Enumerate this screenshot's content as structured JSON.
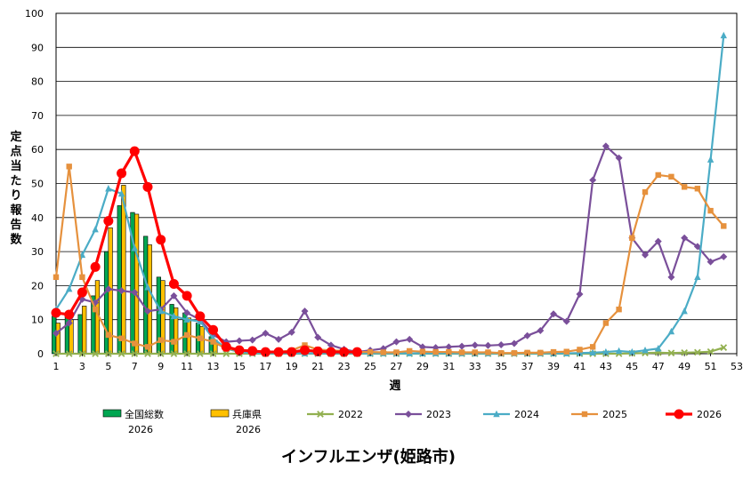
{
  "chart_data": {
    "type": "bar+line",
    "title": "インフルエンザ(姫路市)",
    "xlabel": "週",
    "ylabel": "定点当たり報告数",
    "xlim": [
      1,
      53
    ],
    "ylim": [
      0,
      100
    ],
    "yticks": [
      0,
      10,
      20,
      30,
      40,
      50,
      60,
      70,
      80,
      90,
      100
    ],
    "xticks": [
      1,
      3,
      5,
      7,
      9,
      11,
      13,
      15,
      17,
      19,
      21,
      23,
      25,
      27,
      29,
      31,
      33,
      35,
      37,
      39,
      41,
      43,
      45,
      47,
      49,
      51,
      53
    ],
    "grid": "horizontal",
    "legend_position": "bottom",
    "bar_series": [
      {
        "name": "全国総数\n2026",
        "color": "#00a651",
        "x": [
          1,
          2,
          3,
          4,
          5,
          6,
          7,
          8,
          9,
          10,
          11,
          12,
          13
        ],
        "values": [
          11,
          11,
          11.5,
          17,
          30,
          43.5,
          41.5,
          34.5,
          22.5,
          14.5,
          12,
          9,
          5
        ]
      },
      {
        "name": "兵庫県\n2026",
        "color": "#ffc000",
        "x": [
          1,
          2,
          3,
          4,
          5,
          6,
          7,
          8,
          9,
          10,
          11,
          12,
          13
        ],
        "values": [
          9,
          10,
          14,
          21.5,
          37,
          49.5,
          41,
          32,
          21.5,
          13.5,
          10.5,
          8,
          4
        ]
      }
    ],
    "line_series": [
      {
        "name": "2022",
        "color": "#92b050",
        "marker": "x",
        "x": [
          1,
          2,
          3,
          4,
          5,
          6,
          7,
          8,
          9,
          10,
          11,
          12,
          13,
          14,
          15,
          16,
          17,
          18,
          19,
          20,
          21,
          22,
          23,
          24,
          25,
          26,
          27,
          28,
          29,
          30,
          31,
          32,
          33,
          34,
          35,
          36,
          37,
          38,
          39,
          40,
          41,
          42,
          43,
          44,
          45,
          46,
          47,
          48,
          49,
          50,
          51,
          52
        ],
        "values": [
          0,
          0,
          0,
          0,
          0,
          0,
          0,
          0,
          0,
          0,
          0,
          0,
          0,
          0,
          0,
          0,
          0,
          0,
          0,
          0,
          0,
          0,
          0,
          0,
          0,
          0,
          0,
          0,
          0,
          0,
          0,
          0,
          0,
          0,
          0,
          0,
          0,
          0,
          0,
          0,
          0,
          0,
          0,
          0,
          0.1,
          0.2,
          0.3,
          0.2,
          0.3,
          0.4,
          0.6,
          1.8
        ]
      },
      {
        "name": "2023",
        "color": "#7a4f9a",
        "marker": "diamond",
        "x": [
          1,
          2,
          3,
          4,
          5,
          6,
          7,
          8,
          9,
          10,
          11,
          12,
          13,
          14,
          15,
          16,
          17,
          18,
          19,
          20,
          21,
          22,
          23,
          24,
          25,
          26,
          27,
          28,
          29,
          30,
          31,
          32,
          33,
          34,
          35,
          36,
          37,
          38,
          39,
          40,
          41,
          42,
          43,
          44,
          45,
          46,
          47,
          48,
          49,
          50,
          51,
          52
        ],
        "values": [
          6,
          9,
          16,
          15,
          19,
          18.5,
          18,
          12.5,
          13,
          17,
          12,
          10,
          5.5,
          3.5,
          3.8,
          4,
          6,
          4.2,
          6.3,
          12.5,
          4.8,
          2.5,
          1.3,
          0.5,
          1,
          1.5,
          3.5,
          4.2,
          2,
          1.8,
          2,
          2.2,
          2.5,
          2.4,
          2.6,
          3,
          5.3,
          6.8,
          11.7,
          9.5,
          17.5,
          51,
          61,
          57.5,
          34,
          29,
          33,
          22.5,
          34,
          31.5,
          27,
          28.5
        ]
      },
      {
        "name": "2024",
        "color": "#4bacc6",
        "marker": "triangle",
        "x": [
          1,
          2,
          3,
          4,
          5,
          6,
          7,
          8,
          9,
          10,
          11,
          12,
          13,
          14,
          15,
          16,
          17,
          18,
          19,
          20,
          21,
          22,
          23,
          24,
          25,
          26,
          27,
          28,
          29,
          30,
          31,
          32,
          33,
          34,
          35,
          36,
          37,
          38,
          39,
          40,
          41,
          42,
          43,
          44,
          45,
          46,
          47,
          48,
          49,
          50,
          51,
          52
        ],
        "values": [
          13,
          19,
          29,
          36.5,
          48.5,
          47,
          31,
          19.5,
          12.5,
          11,
          10,
          9.5,
          4.5,
          1.5,
          0.5,
          0.2,
          0.1,
          0.1,
          0.1,
          0.1,
          0.1,
          0.1,
          0.1,
          0.1,
          0.1,
          0.1,
          0.1,
          0.1,
          0.1,
          0.1,
          0.1,
          0.1,
          0.1,
          0.1,
          0.1,
          0.1,
          0.1,
          0.1,
          0.1,
          0.1,
          0.2,
          0.3,
          0.5,
          0.8,
          0.5,
          1,
          1.5,
          6.5,
          12.5,
          22.5,
          57,
          93.5
        ]
      },
      {
        "name": "2025",
        "color": "#e6913d",
        "marker": "square",
        "x": [
          1,
          2,
          3,
          4,
          5,
          6,
          7,
          8,
          9,
          10,
          11,
          12,
          13,
          14,
          15,
          16,
          17,
          18,
          19,
          20,
          21,
          22,
          23,
          24,
          25,
          26,
          27,
          28,
          29,
          30,
          31,
          32,
          33,
          34,
          35,
          36,
          37,
          38,
          39,
          40,
          41,
          42,
          43,
          44,
          45,
          46,
          47,
          48,
          49,
          50,
          51,
          52
        ],
        "values": [
          22.5,
          55,
          22.5,
          13,
          5.5,
          4.5,
          3,
          2,
          4,
          3.5,
          5.5,
          4.5,
          3.5,
          1.5,
          1,
          0.8,
          0.5,
          0.5,
          1,
          2.5,
          1.2,
          1,
          0.8,
          0.5,
          0.5,
          0.4,
          0.4,
          0.8,
          0.6,
          0.5,
          0.5,
          0.4,
          0.4,
          0.4,
          0.2,
          0.2,
          0.3,
          0.3,
          0.5,
          0.6,
          1.2,
          2,
          9,
          13,
          34,
          47.5,
          52.5,
          52,
          49,
          48.5,
          42,
          37.5
        ]
      },
      {
        "name": "2026",
        "color": "#ff0000",
        "marker": "circle",
        "x": [
          1,
          2,
          3,
          4,
          5,
          6,
          7,
          8,
          9,
          10,
          11,
          12,
          13,
          14,
          15,
          16,
          17,
          18,
          19,
          20,
          21,
          22,
          23,
          24
        ],
        "values": [
          12,
          11.5,
          18,
          25.5,
          39,
          53,
          59.5,
          49,
          33.5,
          20.5,
          17,
          11,
          7,
          2,
          1,
          0.8,
          0.5,
          0.5,
          0.5,
          1,
          0.7,
          0.5,
          0.5,
          0.5
        ]
      }
    ]
  }
}
